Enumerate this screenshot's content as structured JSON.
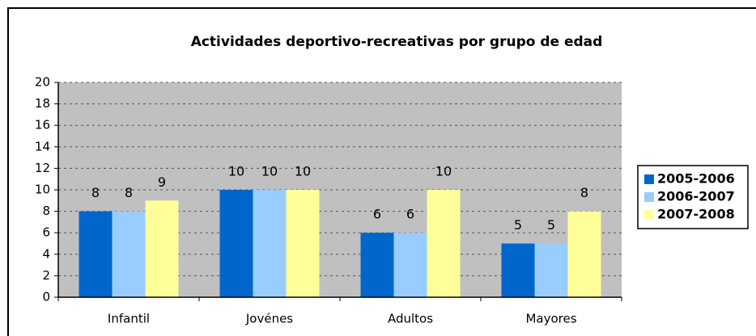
{
  "chart_data": {
    "type": "bar",
    "title": "Actividades deportivo-recreativas por grupo de edad",
    "categories": [
      "Infantil",
      "Jovénes",
      "Adultos",
      "Mayores"
    ],
    "series": [
      {
        "name": "2005-2006",
        "color": "#0066cc",
        "values": [
          8,
          10,
          6,
          5
        ]
      },
      {
        "name": "2006-2007",
        "color": "#99ccff",
        "values": [
          8,
          10,
          6,
          5
        ]
      },
      {
        "name": "2007-2008",
        "color": "#ffff99",
        "values": [
          9,
          10,
          10,
          8
        ]
      }
    ],
    "ylim": [
      0,
      20
    ],
    "yticks": [
      0,
      2,
      4,
      6,
      8,
      10,
      12,
      14,
      16,
      18,
      20
    ],
    "grid": true,
    "legend": "right"
  }
}
